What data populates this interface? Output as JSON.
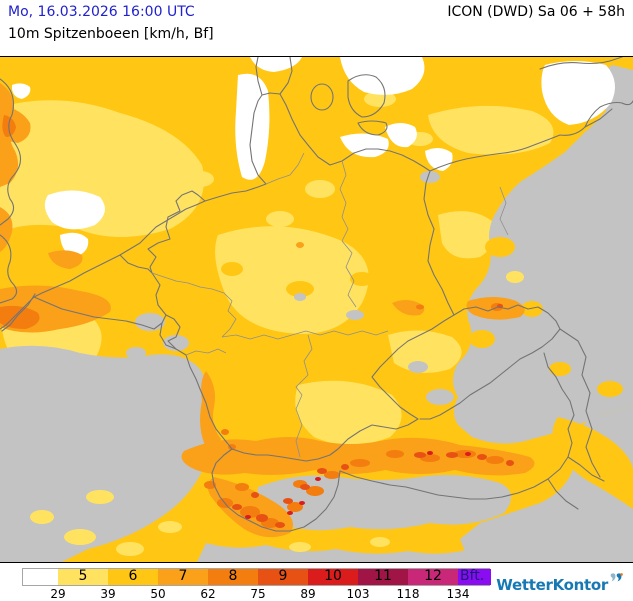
{
  "header": {
    "datetime": "Mo, 16.03.2026 16:00 UTC",
    "parameter": "10m Spitzenboeen [km/h, Bf]",
    "model_run": "ICON (DWD) Sa 06 + 58h"
  },
  "colors": {
    "header_date": "#2121CE",
    "brand_blue": "#1779B4",
    "legend_border": "#A6A6A6"
  },
  "map": {
    "description": "Wind gust forecast map of Germany and Central Europe, ICON (DWD) model",
    "colors": {
      "bft5": "#FFE360",
      "bft6": "#FFC713",
      "bft7": "#FAA019",
      "bft8": "#F37D0E",
      "bft9": "#E85114",
      "bft10": "#DB1C1C",
      "below_scale": "#C3C3C3",
      "calm": "#FFFFFF",
      "border_line": "#747474",
      "state_line": "#8F8F8F"
    }
  },
  "legend": {
    "unit_label": "Bft.",
    "cells": [
      {
        "label": "",
        "color": "#FFFFFF",
        "text_color": "#000000"
      },
      {
        "label": "5",
        "color": "#FFE360",
        "text_color": "#000000"
      },
      {
        "label": "6",
        "color": "#FFC713",
        "text_color": "#000000"
      },
      {
        "label": "7",
        "color": "#FAA019",
        "text_color": "#000000"
      },
      {
        "label": "8",
        "color": "#F37D0E",
        "text_color": "#000000"
      },
      {
        "label": "9",
        "color": "#E85114",
        "text_color": "#000000"
      },
      {
        "label": "10",
        "color": "#DB1C1C",
        "text_color": "#000000"
      },
      {
        "label": "11",
        "color": "#A01446",
        "text_color": "#000000"
      },
      {
        "label": "12",
        "color": "#C92878",
        "text_color": "#000000"
      },
      {
        "label": "Bft.",
        "color": "#8A0DF2",
        "text_color": "#1B1B78"
      }
    ],
    "ticks": [
      "29",
      "39",
      "50",
      "62",
      "75",
      "89",
      "103",
      "118",
      "134"
    ]
  },
  "branding": {
    "logo_text": "WetterKontor"
  }
}
